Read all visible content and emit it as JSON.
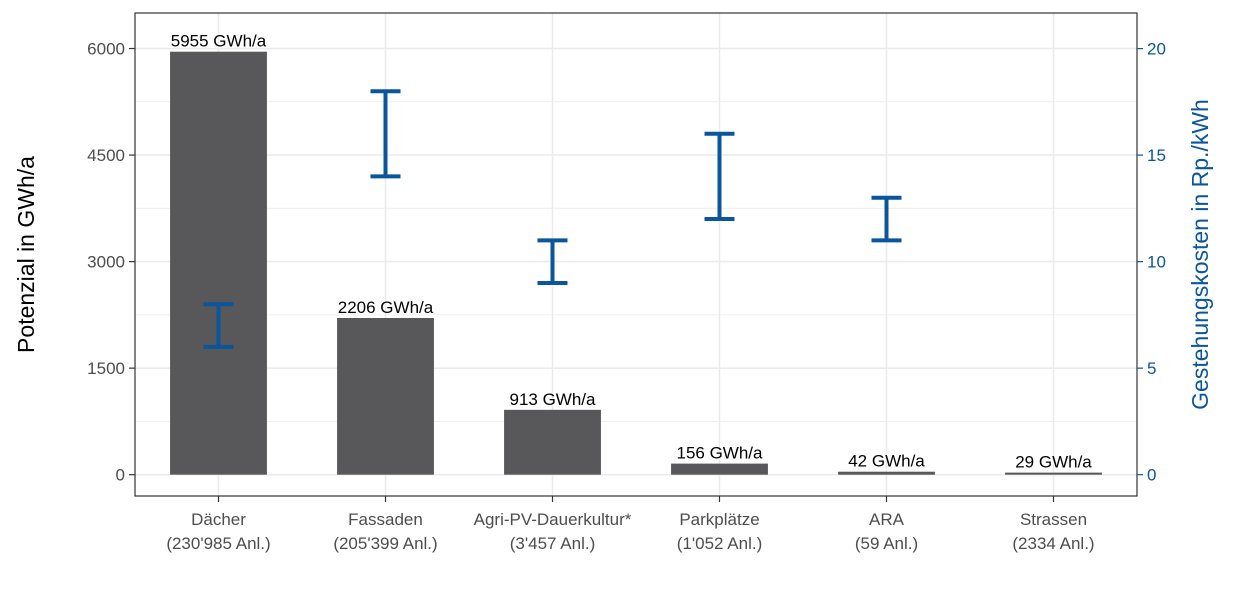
{
  "chart_data": {
    "type": "bar",
    "categories": [
      [
        "Dächer",
        "(230'985 Anl.)"
      ],
      [
        "Fassaden",
        "(205'399 Anl.)"
      ],
      [
        "Agri-PV-Dauerkultur*",
        "(3'457 Anl.)"
      ],
      [
        "Parkplätze",
        "(1'052 Anl.)"
      ],
      [
        "ARA",
        "(59 Anl.)"
      ],
      [
        "Strassen",
        "(2334 Anl.)"
      ]
    ],
    "values": [
      5955,
      2206,
      913,
      156,
      42,
      29
    ],
    "value_labels": [
      "5955 GWh/a",
      "2206 GWh/a",
      "913 GWh/a",
      "156 GWh/a",
      "42 GWh/a",
      "29 GWh/a"
    ],
    "cost_ranges": [
      {
        "low": 6,
        "high": 8
      },
      {
        "low": 14,
        "high": 18
      },
      {
        "low": 9,
        "high": 11
      },
      {
        "low": 12,
        "high": 16
      },
      {
        "low": 11,
        "high": 13
      },
      null
    ],
    "ylabel": "Potenzial in GWh/a",
    "y2label": "Gestehungskosten in Rp./kWh",
    "ylim": [
      -300,
      6500
    ],
    "y2lim": [
      -1,
      21.67
    ],
    "yticks": [
      0,
      1500,
      3000,
      4500,
      6000
    ],
    "y2ticks": [
      0,
      5,
      10,
      15,
      20
    ],
    "grid": true,
    "legend": "none",
    "colors": {
      "bar": "#58575a",
      "errorbar": "#0a569c",
      "grid": "#ebebeb",
      "axis_text": "#4d4d4d",
      "secondary_axis": "#0a569c"
    }
  }
}
